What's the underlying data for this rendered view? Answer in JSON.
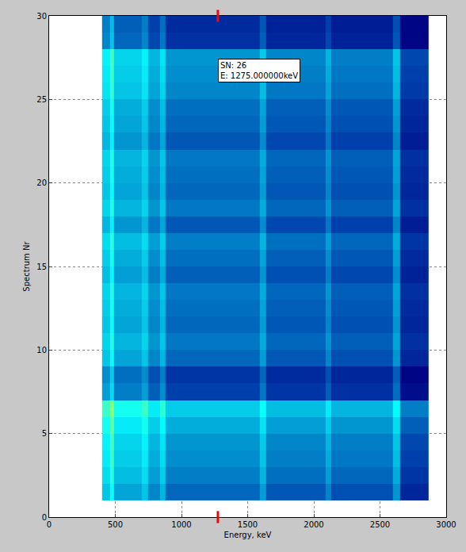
{
  "chart_data": {
    "type": "heatmap",
    "x_label": "Energy, keV",
    "y_label": "Spectrum Nr",
    "xlim": [
      0,
      3000
    ],
    "xticks": [
      0,
      500,
      1000,
      1500,
      2000,
      2500,
      3000
    ],
    "ylim": [
      0,
      30
    ],
    "yticks": [
      0,
      5,
      10,
      15,
      20,
      25,
      30
    ],
    "grid": true,
    "color": "jet",
    "zlim": [
      0,
      1
    ],
    "x_edges": [
      400,
      460,
      490,
      700,
      750,
      840,
      880,
      1590,
      1640,
      2090,
      2130,
      2600,
      2650,
      2870
    ],
    "y_edges": [
      1,
      2,
      3,
      4,
      5,
      6,
      7,
      8,
      9,
      10,
      11,
      12,
      13,
      14,
      15,
      16,
      17,
      18,
      19,
      20,
      21,
      22,
      23,
      24,
      25,
      26,
      27,
      28,
      29,
      30
    ],
    "z": [
      [
        0.3,
        0.38,
        0.26,
        0.3,
        0.22,
        0.28,
        0.18,
        0.25,
        0.16,
        0.22,
        0.15,
        0.24,
        0.08
      ],
      [
        0.33,
        0.41,
        0.29,
        0.33,
        0.25,
        0.31,
        0.21,
        0.28,
        0.19,
        0.25,
        0.18,
        0.27,
        0.11
      ],
      [
        0.35,
        0.43,
        0.31,
        0.35,
        0.27,
        0.33,
        0.23,
        0.3,
        0.21,
        0.27,
        0.2,
        0.29,
        0.13
      ],
      [
        0.36,
        0.44,
        0.32,
        0.36,
        0.28,
        0.34,
        0.24,
        0.31,
        0.22,
        0.28,
        0.21,
        0.3,
        0.14
      ],
      [
        0.39,
        0.47,
        0.35,
        0.39,
        0.31,
        0.37,
        0.27,
        0.34,
        0.25,
        0.31,
        0.24,
        0.33,
        0.17
      ],
      [
        0.43,
        0.51,
        0.39,
        0.43,
        0.35,
        0.41,
        0.31,
        0.38,
        0.29,
        0.35,
        0.28,
        0.37,
        0.21
      ],
      [
        0.25,
        0.33,
        0.21,
        0.25,
        0.17,
        0.23,
        0.13,
        0.2,
        0.11,
        0.17,
        0.1,
        0.19,
        0.03
      ],
      [
        0.23,
        0.31,
        0.19,
        0.23,
        0.15,
        0.21,
        0.11,
        0.18,
        0.09,
        0.15,
        0.08,
        0.17,
        0.01
      ],
      [
        0.3,
        0.38,
        0.26,
        0.3,
        0.22,
        0.28,
        0.18,
        0.25,
        0.16,
        0.22,
        0.15,
        0.24,
        0.08
      ],
      [
        0.32,
        0.4,
        0.28,
        0.32,
        0.24,
        0.3,
        0.2,
        0.27,
        0.18,
        0.24,
        0.17,
        0.26,
        0.1
      ],
      [
        0.3,
        0.38,
        0.26,
        0.3,
        0.22,
        0.28,
        0.18,
        0.25,
        0.16,
        0.22,
        0.15,
        0.24,
        0.08
      ],
      [
        0.31,
        0.39,
        0.27,
        0.31,
        0.23,
        0.29,
        0.19,
        0.26,
        0.17,
        0.23,
        0.16,
        0.25,
        0.09
      ],
      [
        0.32,
        0.4,
        0.28,
        0.32,
        0.24,
        0.3,
        0.2,
        0.27,
        0.18,
        0.24,
        0.17,
        0.26,
        0.1
      ],
      [
        0.29,
        0.37,
        0.25,
        0.29,
        0.21,
        0.27,
        0.17,
        0.24,
        0.15,
        0.21,
        0.14,
        0.23,
        0.07
      ],
      [
        0.31,
        0.39,
        0.27,
        0.31,
        0.23,
        0.29,
        0.19,
        0.26,
        0.17,
        0.23,
        0.16,
        0.25,
        0.09
      ],
      [
        0.33,
        0.41,
        0.29,
        0.33,
        0.25,
        0.31,
        0.21,
        0.28,
        0.19,
        0.25,
        0.18,
        0.27,
        0.11
      ],
      [
        0.28,
        0.36,
        0.24,
        0.28,
        0.2,
        0.26,
        0.16,
        0.23,
        0.14,
        0.2,
        0.13,
        0.22,
        0.06
      ],
      [
        0.32,
        0.4,
        0.28,
        0.32,
        0.24,
        0.3,
        0.2,
        0.27,
        0.18,
        0.24,
        0.17,
        0.26,
        0.1
      ],
      [
        0.3,
        0.38,
        0.26,
        0.3,
        0.22,
        0.28,
        0.18,
        0.25,
        0.16,
        0.22,
        0.15,
        0.24,
        0.08
      ],
      [
        0.31,
        0.39,
        0.27,
        0.31,
        0.23,
        0.29,
        0.19,
        0.26,
        0.17,
        0.23,
        0.16,
        0.25,
        0.09
      ],
      [
        0.32,
        0.4,
        0.28,
        0.32,
        0.24,
        0.3,
        0.2,
        0.27,
        0.18,
        0.24,
        0.17,
        0.26,
        0.1
      ],
      [
        0.28,
        0.36,
        0.24,
        0.28,
        0.2,
        0.26,
        0.16,
        0.23,
        0.14,
        0.2,
        0.13,
        0.22,
        0.06
      ],
      [
        0.3,
        0.38,
        0.26,
        0.3,
        0.22,
        0.28,
        0.18,
        0.25,
        0.16,
        0.22,
        0.15,
        0.24,
        0.08
      ],
      [
        0.31,
        0.39,
        0.27,
        0.31,
        0.23,
        0.29,
        0.19,
        0.26,
        0.17,
        0.23,
        0.16,
        0.25,
        0.09
      ],
      [
        0.34,
        0.42,
        0.3,
        0.34,
        0.26,
        0.32,
        0.22,
        0.29,
        0.2,
        0.26,
        0.19,
        0.28,
        0.12
      ],
      [
        0.35,
        0.43,
        0.31,
        0.35,
        0.27,
        0.33,
        0.23,
        0.3,
        0.21,
        0.27,
        0.2,
        0.29,
        0.13
      ],
      [
        0.36,
        0.44,
        0.32,
        0.36,
        0.28,
        0.34,
        0.24,
        0.31,
        0.22,
        0.28,
        0.21,
        0.3,
        0.14
      ],
      [
        0.22,
        0.3,
        0.18,
        0.22,
        0.14,
        0.2,
        0.1,
        0.17,
        0.08,
        0.14,
        0.07,
        0.16,
        0.01
      ],
      [
        0.21,
        0.29,
        0.17,
        0.21,
        0.13,
        0.19,
        0.09,
        0.16,
        0.07,
        0.13,
        0.06,
        0.15,
        0.01
      ]
    ],
    "annotations": [
      {
        "lines": [
          "SN: 26",
          "E: 1275.000000keV"
        ],
        "x": 1275,
        "y": 26
      }
    ]
  }
}
